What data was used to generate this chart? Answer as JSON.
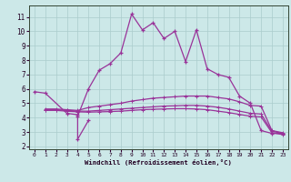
{
  "background_color": "#cce8e8",
  "grid_color": "#aacccc",
  "line_color": "#993399",
  "xlabel": "Windchill (Refroidissement éolien,°C)",
  "xlim": [
    -0.5,
    23.5
  ],
  "ylim": [
    1.8,
    11.8
  ],
  "xticks": [
    0,
    1,
    2,
    3,
    4,
    5,
    6,
    7,
    8,
    9,
    10,
    11,
    12,
    13,
    14,
    15,
    16,
    17,
    18,
    19,
    20,
    21,
    22,
    23
  ],
  "yticks": [
    2,
    3,
    4,
    5,
    6,
    7,
    8,
    9,
    10,
    11
  ],
  "line_short_x": [
    0,
    1,
    3,
    4,
    4,
    5
  ],
  "line_short_y": [
    5.8,
    5.7,
    4.3,
    4.2,
    2.5,
    3.8
  ],
  "line_main_x": [
    4,
    5,
    6,
    7,
    8,
    9,
    10,
    11,
    12,
    13,
    14,
    15,
    16,
    17,
    18,
    19,
    20,
    21,
    22,
    23
  ],
  "line_main_y": [
    4.1,
    6.0,
    7.3,
    7.75,
    8.5,
    11.2,
    10.1,
    10.6,
    9.5,
    10.0,
    7.9,
    10.1,
    7.4,
    7.0,
    6.8,
    5.5,
    5.0,
    3.1,
    2.9,
    2.9
  ],
  "line_flat1_x": [
    1,
    2,
    3,
    4,
    5,
    6,
    7,
    8,
    9,
    10,
    11,
    12,
    13,
    14,
    15,
    16,
    17,
    18,
    19,
    20,
    21,
    22,
    23
  ],
  "line_flat1_y": [
    4.6,
    4.6,
    4.55,
    4.5,
    4.7,
    4.8,
    4.9,
    5.0,
    5.15,
    5.25,
    5.35,
    5.4,
    5.45,
    5.5,
    5.5,
    5.5,
    5.4,
    5.3,
    5.1,
    4.85,
    4.8,
    3.1,
    2.95
  ],
  "line_flat2_x": [
    1,
    2,
    3,
    4,
    5,
    6,
    7,
    8,
    9,
    10,
    11,
    12,
    13,
    14,
    15,
    16,
    17,
    18,
    19,
    20,
    21,
    22,
    23
  ],
  "line_flat2_y": [
    4.55,
    4.55,
    4.5,
    4.45,
    4.45,
    4.5,
    4.55,
    4.6,
    4.65,
    4.7,
    4.75,
    4.8,
    4.82,
    4.85,
    4.85,
    4.8,
    4.72,
    4.6,
    4.45,
    4.3,
    4.25,
    3.05,
    2.9
  ],
  "line_flat3_x": [
    1,
    2,
    3,
    4,
    5,
    6,
    7,
    8,
    9,
    10,
    11,
    12,
    13,
    14,
    15,
    16,
    17,
    18,
    19,
    20,
    21,
    22,
    23
  ],
  "line_flat3_y": [
    4.5,
    4.5,
    4.45,
    4.4,
    4.38,
    4.4,
    4.42,
    4.45,
    4.5,
    4.55,
    4.58,
    4.6,
    4.62,
    4.62,
    4.6,
    4.55,
    4.45,
    4.35,
    4.22,
    4.1,
    4.05,
    2.95,
    2.82
  ]
}
